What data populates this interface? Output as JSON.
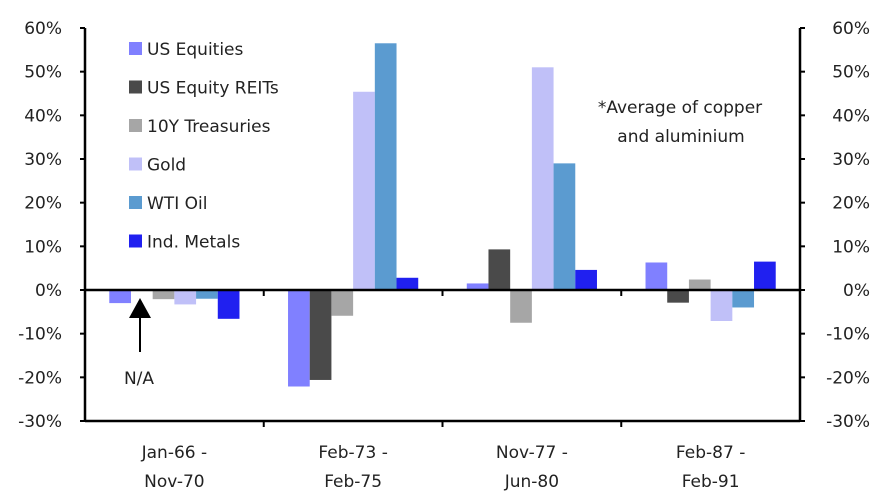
{
  "chart_data": {
    "type": "bar",
    "categories": [
      "Jan-66 -\nNov-70",
      "Feb-73 -\nFeb-75",
      "Nov-77 -\nJun-80",
      "Feb-87 -\nFeb-91"
    ],
    "series": [
      {
        "name": "US Equities",
        "color": "#8080ff",
        "values": [
          -3.0,
          -22.1,
          1.5,
          6.3
        ]
      },
      {
        "name": "US Equity REITs",
        "color": "#4a4a4a",
        "values": [
          null,
          -20.6,
          9.3,
          -2.9
        ]
      },
      {
        "name": "10Y Treasuries",
        "color": "#a6a6a6",
        "values": [
          -2.1,
          -5.9,
          -7.5,
          2.4
        ]
      },
      {
        "name": "Gold",
        "color": "#c0c0f8",
        "values": [
          -3.3,
          45.4,
          51.0,
          -7.1
        ]
      },
      {
        "name": "WTI Oil",
        "color": "#5b9bd0",
        "values": [
          -2.0,
          56.5,
          29.0,
          -4.0
        ]
      },
      {
        "name": "Ind. Metals",
        "color": "#2020f0",
        "values": [
          -6.6,
          2.8,
          4.6,
          6.5
        ]
      }
    ],
    "ylim": [
      -30,
      60
    ],
    "yticks": [
      "-30%",
      "-20%",
      "-10%",
      "0%",
      "10%",
      "20%",
      "30%",
      "40%",
      "50%",
      "60%"
    ],
    "legend_position": "top-left",
    "grid": false,
    "annotations": {
      "na_label": "N/A",
      "footnote_line1": "*Average of copper",
      "footnote_line2": "and aluminium"
    }
  }
}
